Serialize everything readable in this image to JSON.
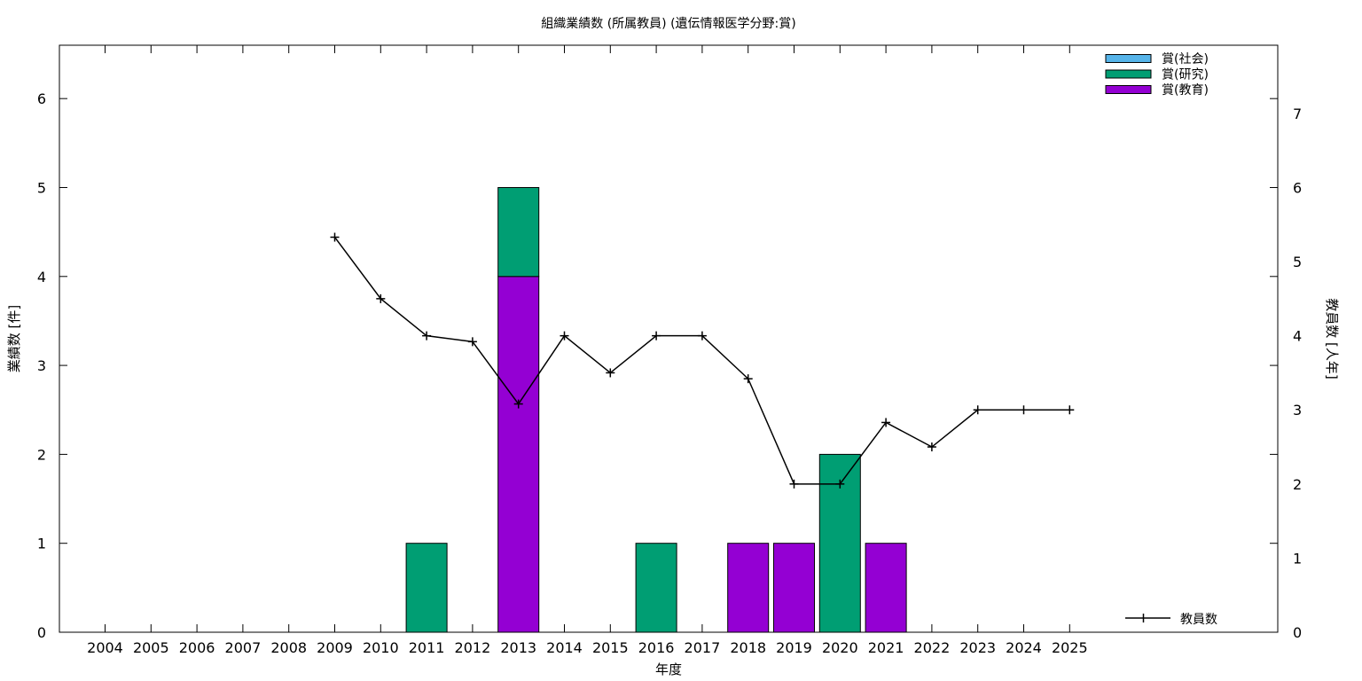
{
  "chart_data": {
    "type": "bar",
    "title": "組織業績数 (所属教員) (遺伝情報医学分野:賞)",
    "xlabel": "年度",
    "ylabel": "業績数 [件]",
    "y2label": "教員数 [人年]",
    "ylim": [
      0,
      6.6
    ],
    "y2lim": [
      0,
      7.92
    ],
    "yticks": [
      0,
      1,
      2,
      3,
      4,
      5,
      6
    ],
    "y2ticks": [
      0,
      1,
      2,
      3,
      4,
      5,
      6,
      7
    ],
    "categories": [
      "2004",
      "2005",
      "2006",
      "2007",
      "2008",
      "2009",
      "2010",
      "2011",
      "2012",
      "2013",
      "2014",
      "2015",
      "2016",
      "2017",
      "2018",
      "2019",
      "2020",
      "2021",
      "2022",
      "2023",
      "2024",
      "2025"
    ],
    "stacked": true,
    "grid": false,
    "legend_position": "top-right",
    "series": [
      {
        "name": "賞(社会)",
        "color": "#56b4e9",
        "values": [
          0,
          0,
          0,
          0,
          0,
          0,
          0,
          0,
          0,
          0,
          0,
          0,
          0,
          0,
          0,
          0,
          0,
          0,
          0,
          0,
          0,
          0
        ]
      },
      {
        "name": "賞(研究)",
        "color": "#009e73",
        "values": [
          0,
          0,
          0,
          0,
          0,
          0,
          0,
          1,
          0,
          1,
          0,
          0,
          1,
          0,
          0,
          0,
          2,
          0,
          0,
          0,
          0,
          0
        ]
      },
      {
        "name": "賞(教育)",
        "color": "#9400d3",
        "values": [
          0,
          0,
          0,
          0,
          0,
          0,
          0,
          0,
          0,
          4,
          0,
          0,
          0,
          0,
          1,
          1,
          0,
          1,
          0,
          0,
          0,
          0
        ]
      }
    ],
    "line_series": {
      "name": "教員数",
      "axis": "y2",
      "color": "#000000",
      "marker": "+",
      "legend_position": "bottom-right",
      "values": [
        null,
        null,
        null,
        null,
        null,
        5.33,
        4.5,
        4.0,
        3.92,
        3.08,
        4.0,
        3.5,
        4.0,
        4.0,
        3.42,
        2.0,
        2.0,
        2.83,
        2.5,
        3.0,
        3.0,
        3.0
      ]
    }
  }
}
